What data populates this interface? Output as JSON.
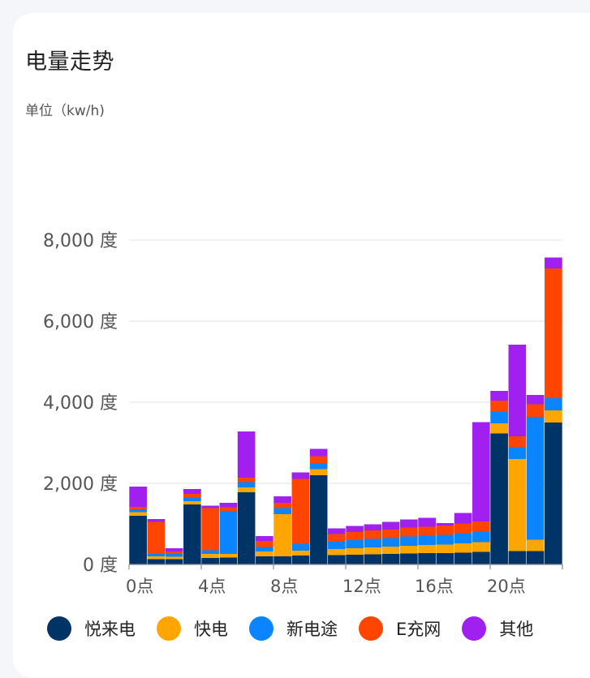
{
  "header": {
    "title": "电量走势",
    "unit": "单位（kw/h)"
  },
  "colors": {
    "悦来电": "#003366",
    "快电": "#ffa500",
    "新电途": "#0a84ff",
    "E充网": "#ff4500",
    "其他": "#a020f0"
  },
  "chart_data": {
    "type": "bar",
    "stacked": true,
    "title": "电量走势",
    "ylabel": "单位（kw/h)",
    "ylim": [
      0,
      8000
    ],
    "y_ticks": [
      "0 度",
      "2,000 度",
      "4,000 度",
      "6,000 度",
      "8,000 度"
    ],
    "x_tick_labels": [
      "0点",
      "4点",
      "8点",
      "12点",
      "16点",
      "20点"
    ],
    "categories": [
      0,
      1,
      2,
      3,
      4,
      5,
      6,
      7,
      8,
      9,
      10,
      11,
      12,
      13,
      14,
      15,
      16,
      17,
      18,
      19,
      20,
      21,
      22,
      23
    ],
    "series": [
      {
        "name": "悦来电",
        "color": "#003366",
        "values": [
          1200,
          130,
          130,
          1480,
          160,
          170,
          1780,
          200,
          200,
          220,
          2200,
          230,
          240,
          250,
          260,
          270,
          280,
          280,
          290,
          310,
          3230,
          330,
          330,
          3500
        ]
      },
      {
        "name": "快电",
        "color": "#ffa500",
        "values": [
          90,
          70,
          60,
          80,
          100,
          90,
          120,
          120,
          1040,
          120,
          150,
          150,
          160,
          170,
          180,
          190,
          200,
          210,
          230,
          240,
          250,
          2270,
          280,
          300
        ]
      },
      {
        "name": "新电途",
        "color": "#0a84ff",
        "values": [
          70,
          60,
          70,
          90,
          90,
          1060,
          130,
          110,
          150,
          170,
          150,
          180,
          200,
          210,
          210,
          230,
          230,
          240,
          250,
          260,
          280,
          290,
          3030,
          300
        ]
      },
      {
        "name": "E充网",
        "color": "#ff4500",
        "values": [
          60,
          790,
          60,
          90,
          1040,
          90,
          110,
          150,
          130,
          1600,
          170,
          190,
          200,
          210,
          210,
          220,
          220,
          230,
          240,
          250,
          280,
          270,
          310,
          3200
        ]
      },
      {
        "name": "其他",
        "color": "#a020f0",
        "values": [
          500,
          70,
          80,
          120,
          60,
          110,
          1140,
          120,
          160,
          160,
          180,
          140,
          150,
          150,
          190,
          200,
          220,
          60,
          260,
          2450,
          240,
          2260,
          230,
          270
        ]
      }
    ],
    "legend": "bottom",
    "grid": true
  }
}
